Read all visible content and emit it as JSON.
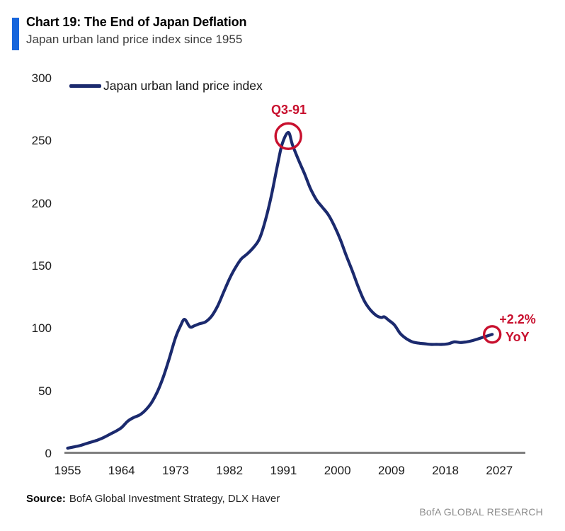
{
  "header": {
    "title": "Chart 19: The End of Japan Deflation",
    "subtitle": "Japan urban land price index since 1955"
  },
  "legend": {
    "label": "Japan urban land price index"
  },
  "annotations": {
    "peak": "Q3-91",
    "end_pct": "+2.2%",
    "end_yoy": "YoY"
  },
  "source": {
    "label": "Source:",
    "text": "BofA Global Investment Strategy, DLX Haver"
  },
  "brand": "BofA GLOBAL RESEARCH",
  "colors": {
    "accent_bar": "#1665dc",
    "line": "#1b2a6e",
    "annotation_red": "#c8102e",
    "axis_line": "#7f7f7f",
    "subtitle_text": "#3d3d3d",
    "tick_text": "#1a1a1a",
    "brand_text": "#8c8c8c"
  },
  "chart_data": {
    "type": "line",
    "title": "Chart 19: The End of Japan Deflation",
    "subtitle": "Japan urban land price index since 1955",
    "xlabel": "",
    "ylabel": "",
    "x_ticks": [
      1955,
      1964,
      1973,
      1982,
      1991,
      2000,
      2009,
      2018,
      2027
    ],
    "y_ticks": [
      0,
      50,
      100,
      150,
      200,
      250,
      300
    ],
    "xlim": [
      1955,
      2033
    ],
    "ylim": [
      0,
      300
    ],
    "grid": false,
    "legend_position": "top-left",
    "series": [
      {
        "name": "Japan urban land price index",
        "points": [
          [
            1955,
            4.5
          ],
          [
            1956,
            5.5
          ],
          [
            1957,
            6.5
          ],
          [
            1958,
            8
          ],
          [
            1959,
            9.5
          ],
          [
            1960,
            11
          ],
          [
            1961,
            13
          ],
          [
            1962,
            15.5
          ],
          [
            1963,
            18
          ],
          [
            1964,
            21
          ],
          [
            1965,
            26
          ],
          [
            1966,
            29
          ],
          [
            1967,
            31
          ],
          [
            1968,
            35
          ],
          [
            1969,
            41
          ],
          [
            1970,
            50
          ],
          [
            1971,
            62
          ],
          [
            1972,
            77
          ],
          [
            1973,
            93
          ],
          [
            1973.8,
            102
          ],
          [
            1974.5,
            107.5
          ],
          [
            1975.4,
            101.5
          ],
          [
            1976.2,
            102.5
          ],
          [
            1977,
            104
          ],
          [
            1978,
            105.5
          ],
          [
            1979,
            110
          ],
          [
            1980,
            118
          ],
          [
            1981,
            129
          ],
          [
            1982,
            140
          ],
          [
            1983,
            149
          ],
          [
            1984,
            156
          ],
          [
            1985,
            160
          ],
          [
            1986,
            165
          ],
          [
            1987,
            172
          ],
          [
            1988,
            187
          ],
          [
            1989,
            207
          ],
          [
            1990,
            231
          ],
          [
            1990.8,
            248
          ],
          [
            1991.8,
            257
          ],
          [
            1992.5,
            247
          ],
          [
            1993.5,
            235
          ],
          [
            1994.5,
            224
          ],
          [
            1995.5,
            212
          ],
          [
            1996.5,
            203
          ],
          [
            1997.5,
            197
          ],
          [
            1998.5,
            191
          ],
          [
            1999.5,
            182
          ],
          [
            2000.5,
            171
          ],
          [
            2001.5,
            158
          ],
          [
            2002.5,
            146
          ],
          [
            2003.5,
            133
          ],
          [
            2004.5,
            122
          ],
          [
            2005.5,
            115
          ],
          [
            2006.5,
            110.5
          ],
          [
            2007.3,
            109
          ],
          [
            2007.8,
            109.5
          ],
          [
            2008.5,
            107
          ],
          [
            2009.5,
            103
          ],
          [
            2010.5,
            96
          ],
          [
            2011.5,
            92
          ],
          [
            2012.5,
            89.5
          ],
          [
            2013.5,
            88.5
          ],
          [
            2014.5,
            88
          ],
          [
            2015.5,
            87.5
          ],
          [
            2016.5,
            87.5
          ],
          [
            2017.5,
            87.5
          ],
          [
            2018.5,
            88
          ],
          [
            2019.5,
            89.5
          ],
          [
            2020.5,
            89
          ],
          [
            2021.5,
            89.5
          ],
          [
            2022.5,
            90.5
          ],
          [
            2023.5,
            92
          ],
          [
            2024.5,
            93.5
          ],
          [
            2025.8,
            95.5
          ]
        ]
      }
    ],
    "annotations": [
      {
        "label": "Q3-91",
        "x": 1991.8,
        "y": 254,
        "style": "circled-peak"
      },
      {
        "label": "+2.2% YoY",
        "x": 2025.8,
        "y": 95.5,
        "style": "circled-end"
      }
    ]
  }
}
